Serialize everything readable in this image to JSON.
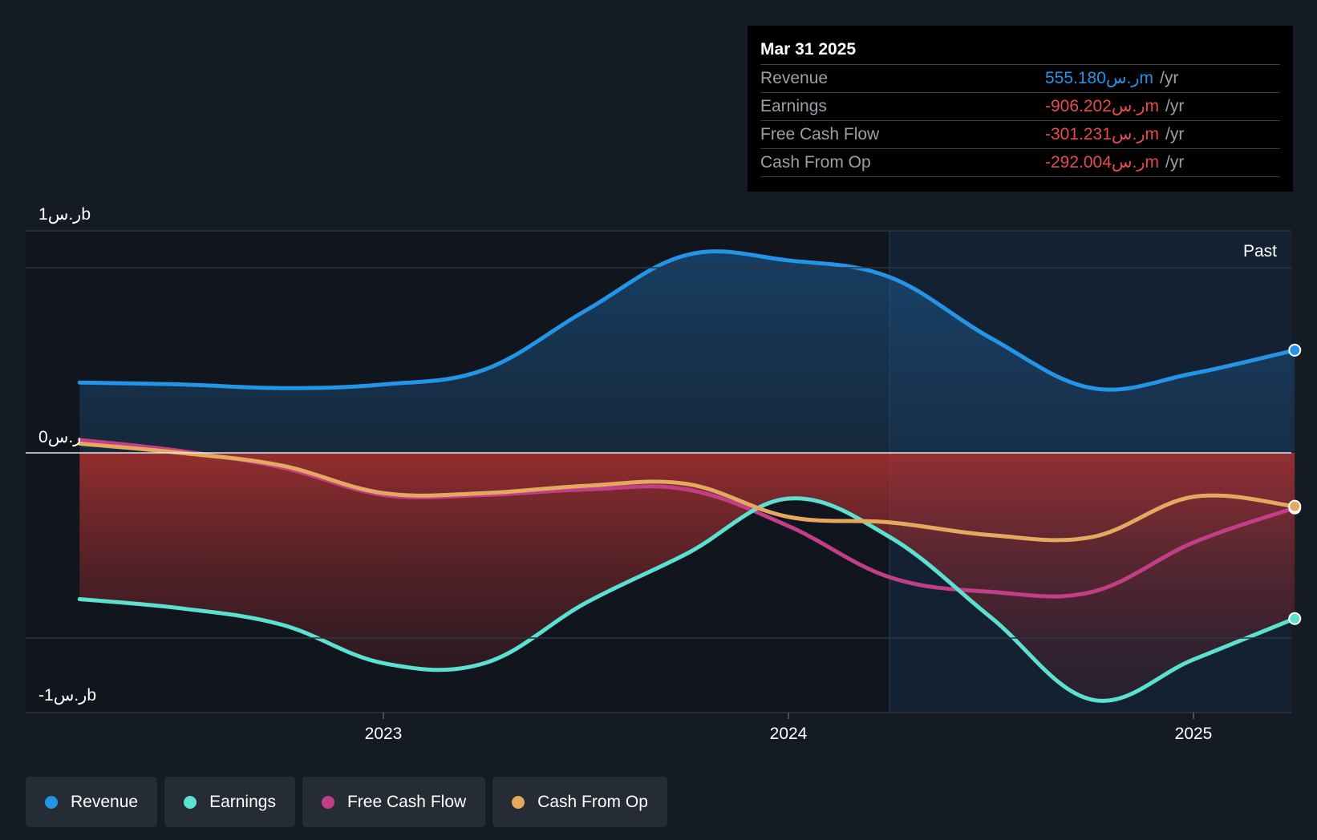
{
  "chart_data": {
    "type": "area",
    "x_unit": "year",
    "xlim": [
      2022.12,
      2025.25
    ],
    "ylim": [
      -1.15,
      1.0
    ],
    "y_axis_labels": [
      {
        "value": 1.0,
        "label": "1ر.سb"
      },
      {
        "value": 0,
        "label": "0ر.س"
      },
      {
        "value": -1.0,
        "label": "-1ر.سb"
      }
    ],
    "x_ticks": [
      {
        "value": 2023.0,
        "label": "2023"
      },
      {
        "value": 2024.0,
        "label": "2024"
      },
      {
        "value": 2025.0,
        "label": "2025"
      }
    ],
    "past_label": "Past",
    "past_start": 2024.25,
    "series": [
      {
        "name": "Revenue",
        "color": "#2394e6",
        "points": [
          [
            2022.25,
            0.38
          ],
          [
            2022.5,
            0.37
          ],
          [
            2022.75,
            0.35
          ],
          [
            2023.0,
            0.37
          ],
          [
            2023.25,
            0.45
          ],
          [
            2023.5,
            0.77
          ],
          [
            2023.75,
            1.07
          ],
          [
            2024.0,
            1.04
          ],
          [
            2024.25,
            0.95
          ],
          [
            2024.5,
            0.62
          ],
          [
            2024.75,
            0.35
          ],
          [
            2025.0,
            0.43
          ],
          [
            2025.25,
            0.555
          ]
        ]
      },
      {
        "name": "Earnings",
        "color": "#5ce0d0",
        "points": [
          [
            2022.25,
            -0.8
          ],
          [
            2022.5,
            -0.85
          ],
          [
            2022.75,
            -0.94
          ],
          [
            2023.0,
            -1.15
          ],
          [
            2023.25,
            -1.15
          ],
          [
            2023.5,
            -0.82
          ],
          [
            2023.75,
            -0.55
          ],
          [
            2024.0,
            -0.25
          ],
          [
            2024.25,
            -0.46
          ],
          [
            2024.5,
            -0.9
          ],
          [
            2024.75,
            -1.35
          ],
          [
            2025.0,
            -1.13
          ],
          [
            2025.25,
            -0.906
          ]
        ]
      },
      {
        "name": "Free Cash Flow",
        "color": "#c23e87",
        "points": [
          [
            2022.25,
            0.07
          ],
          [
            2022.5,
            0.01
          ],
          [
            2022.75,
            -0.08
          ],
          [
            2023.0,
            -0.23
          ],
          [
            2023.25,
            -0.23
          ],
          [
            2023.5,
            -0.2
          ],
          [
            2023.75,
            -0.2
          ],
          [
            2024.0,
            -0.4
          ],
          [
            2024.25,
            -0.68
          ],
          [
            2024.5,
            -0.76
          ],
          [
            2024.75,
            -0.76
          ],
          [
            2025.0,
            -0.49
          ],
          [
            2025.25,
            -0.301
          ]
        ]
      },
      {
        "name": "Cash From Op",
        "color": "#e4a85f",
        "points": [
          [
            2022.25,
            0.05
          ],
          [
            2022.5,
            0.0
          ],
          [
            2022.75,
            -0.07
          ],
          [
            2023.0,
            -0.22
          ],
          [
            2023.25,
            -0.22
          ],
          [
            2023.5,
            -0.18
          ],
          [
            2023.75,
            -0.17
          ],
          [
            2024.0,
            -0.35
          ],
          [
            2024.25,
            -0.38
          ],
          [
            2024.5,
            -0.45
          ],
          [
            2024.75,
            -0.46
          ],
          [
            2025.0,
            -0.24
          ],
          [
            2025.25,
            -0.292
          ]
        ]
      }
    ],
    "legend": [
      "Revenue",
      "Earnings",
      "Free Cash Flow",
      "Cash From Op"
    ]
  },
  "tooltip": {
    "date": "Mar 31 2025",
    "rows": [
      {
        "label": "Revenue",
        "value": "555.180ر.سm",
        "unit": "/yr",
        "color": "#2394e6"
      },
      {
        "label": "Earnings",
        "value": "-906.202ر.سm",
        "unit": "/yr",
        "color": "#e84b4b"
      },
      {
        "label": "Free Cash Flow",
        "value": "-301.231ر.سm",
        "unit": "/yr",
        "color": "#e84b4b"
      },
      {
        "label": "Cash From Op",
        "value": "-292.004ر.سm",
        "unit": "/yr",
        "color": "#e84b4b"
      }
    ]
  }
}
